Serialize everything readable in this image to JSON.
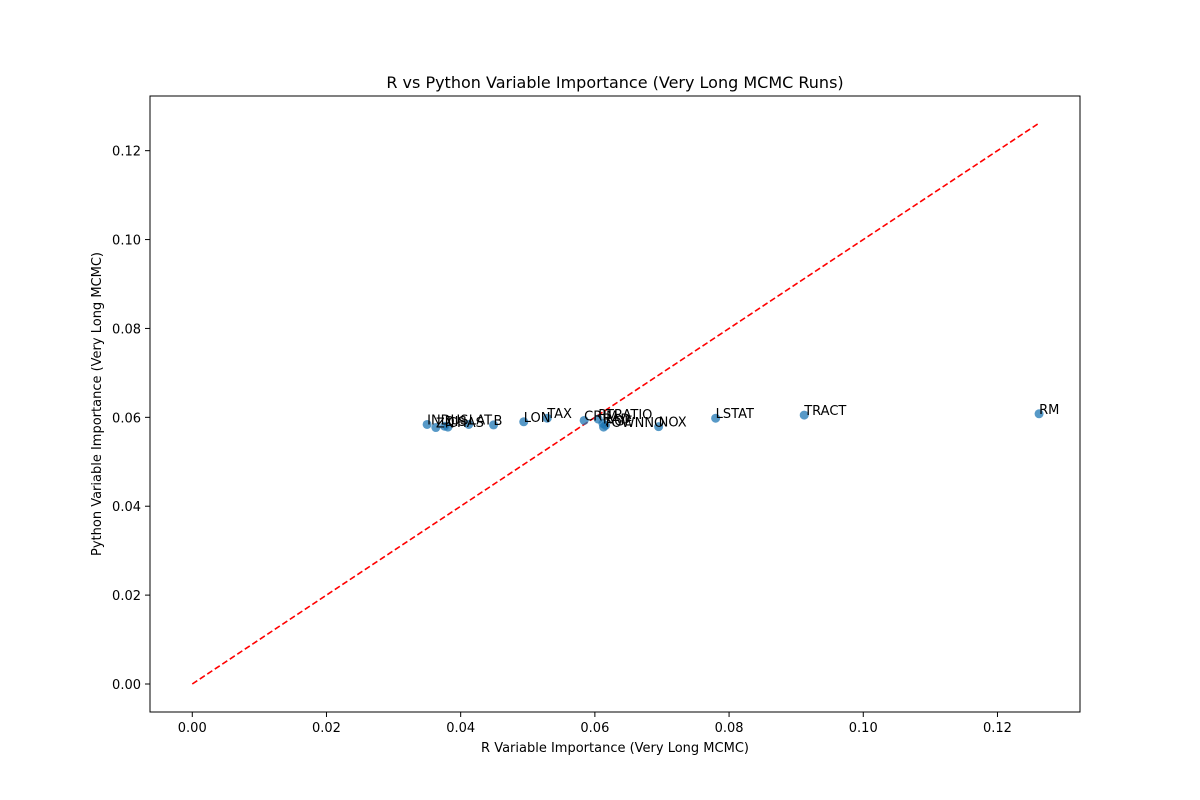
{
  "chart_data": {
    "type": "scatter",
    "title": "R vs Python Variable Importance (Very Long MCMC Runs)",
    "xlabel": "R Variable Importance (Very Long MCMC)",
    "ylabel": "Python Variable Importance (Very Long MCMC)",
    "xlim": [
      -0.0063,
      0.1323
    ],
    "ylim": [
      -0.0063,
      0.1323
    ],
    "xticks": [
      "0.00",
      "0.02",
      "0.04",
      "0.06",
      "0.08",
      "0.10",
      "0.12"
    ],
    "yticks": [
      "0.00",
      "0.02",
      "0.04",
      "0.06",
      "0.08",
      "0.10",
      "0.12"
    ],
    "grid": false,
    "point_color": "#1f77b4",
    "reference_line": {
      "from": [
        0,
        0
      ],
      "to": [
        0.126,
        0.126
      ],
      "color": "#ff0000",
      "style": "dashed"
    },
    "points": [
      {
        "label": "INDUS",
        "x": 0.035,
        "y": 0.0584
      },
      {
        "label": "ZN",
        "x": 0.0363,
        "y": 0.0577
      },
      {
        "label": "DIS",
        "x": 0.0376,
        "y": 0.058
      },
      {
        "label": "CHAS",
        "x": 0.0381,
        "y": 0.0578
      },
      {
        "label": "LAT",
        "x": 0.0412,
        "y": 0.0584
      },
      {
        "label": "B",
        "x": 0.0449,
        "y": 0.0583
      },
      {
        "label": "LON",
        "x": 0.0494,
        "y": 0.059
      },
      {
        "label": "TAX",
        "x": 0.0529,
        "y": 0.0598
      },
      {
        "label": "CRIM",
        "x": 0.0584,
        "y": 0.0593
      },
      {
        "label": "PTRATIO",
        "x": 0.0605,
        "y": 0.0596
      },
      {
        "label": "RAD",
        "x": 0.0612,
        "y": 0.0586
      },
      {
        "label": "AGE",
        "x": 0.0616,
        "y": 0.0582
      },
      {
        "label": "TOWNNO",
        "x": 0.0613,
        "y": 0.0578
      },
      {
        "label": "NOX",
        "x": 0.0695,
        "y": 0.0579
      },
      {
        "label": "LSTAT",
        "x": 0.078,
        "y": 0.0598
      },
      {
        "label": "TRACT",
        "x": 0.0912,
        "y": 0.0605
      },
      {
        "label": "RM",
        "x": 0.1262,
        "y": 0.0608
      }
    ]
  }
}
